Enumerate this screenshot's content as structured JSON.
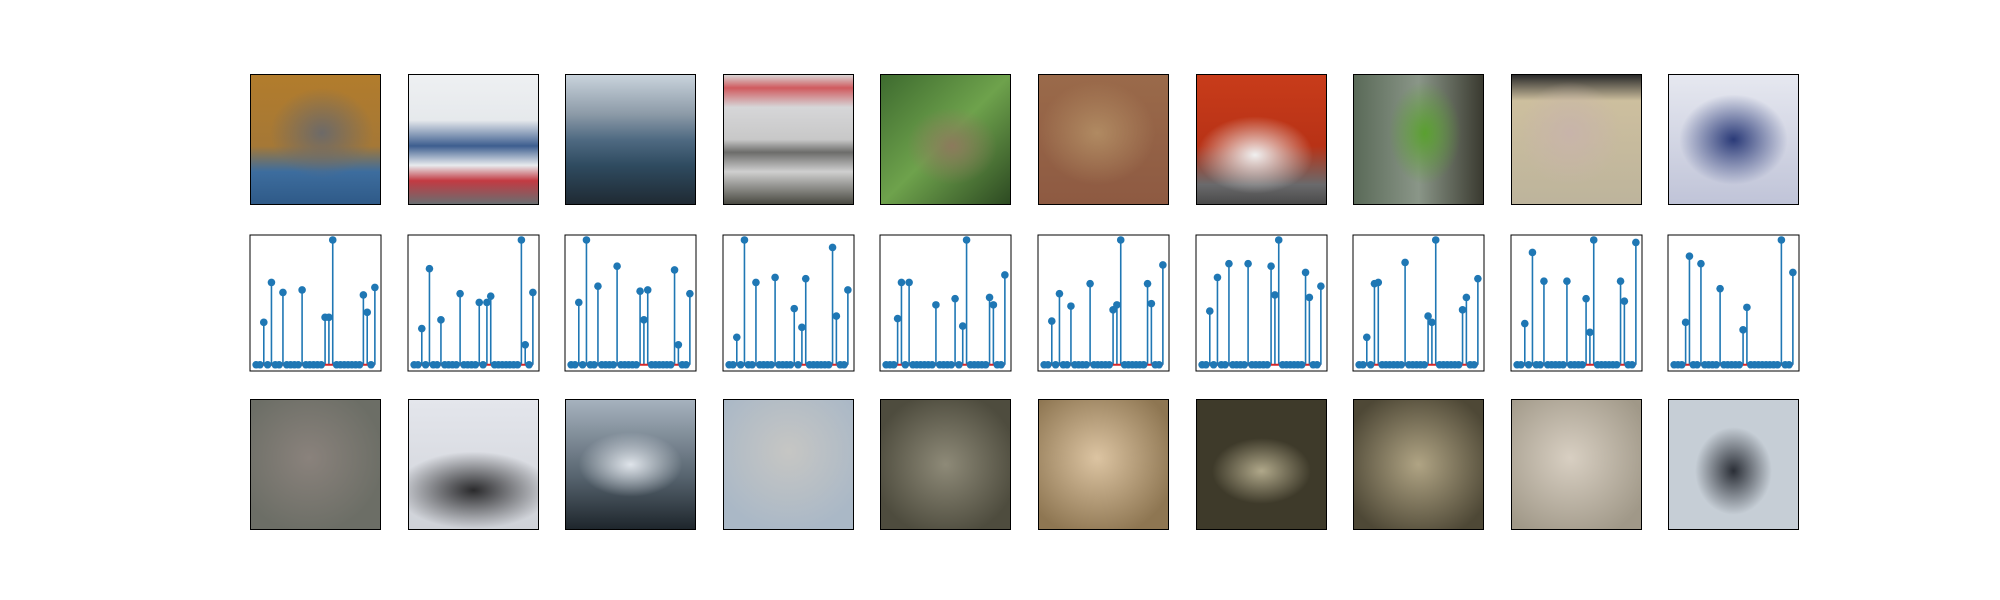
{
  "chart_data": [
    {
      "type": "stem",
      "color": "#1f77b4",
      "baseline_color": "#d62728",
      "xlim": [
        -1.6,
        32.6
      ],
      "ylim": [
        -0.05,
        1.04
      ],
      "values": [
        0,
        0,
        0.34,
        0,
        0.66,
        0,
        0,
        0.58,
        0,
        0,
        0,
        0,
        0.6,
        0,
        0,
        0,
        0,
        0,
        0.38,
        0.38,
        1.0,
        0,
        0,
        0,
        0,
        0,
        0,
        0,
        0.56,
        0.42,
        0,
        0.62
      ]
    },
    {
      "type": "stem",
      "color": "#1f77b4",
      "baseline_color": "#d62728",
      "xlim": [
        -1.6,
        32.6
      ],
      "ylim": [
        -0.05,
        1.04
      ],
      "values": [
        0,
        0,
        0.29,
        0,
        0.77,
        0,
        0,
        0.36,
        0,
        0,
        0,
        0,
        0.57,
        0,
        0,
        0,
        0,
        0.5,
        0,
        0.5,
        0.55,
        0,
        0,
        0,
        0,
        0,
        0,
        0,
        1.0,
        0.16,
        0,
        0.58
      ]
    },
    {
      "type": "stem",
      "color": "#1f77b4",
      "baseline_color": "#d62728",
      "xlim": [
        -1.6,
        32.6
      ],
      "ylim": [
        -0.05,
        1.04
      ],
      "values": [
        0,
        0,
        0.5,
        0,
        1.0,
        0,
        0,
        0.63,
        0,
        0,
        0,
        0,
        0.79,
        0,
        0,
        0,
        0,
        0,
        0.59,
        0.36,
        0.6,
        0,
        0,
        0,
        0,
        0,
        0,
        0.76,
        0.16,
        0,
        0,
        0.57
      ]
    },
    {
      "type": "stem",
      "color": "#1f77b4",
      "baseline_color": "#d62728",
      "xlim": [
        -1.6,
        32.6
      ],
      "ylim": [
        -0.05,
        1.04
      ],
      "values": [
        0,
        0,
        0.22,
        0,
        1.0,
        0,
        0,
        0.66,
        0,
        0,
        0,
        0,
        0.7,
        0,
        0,
        0,
        0,
        0.45,
        0,
        0.3,
        0.69,
        0,
        0,
        0,
        0,
        0,
        0,
        0.94,
        0.39,
        0,
        0,
        0.6
      ]
    },
    {
      "type": "stem",
      "color": "#1f77b4",
      "baseline_color": "#d62728",
      "xlim": [
        -1.6,
        32.6
      ],
      "ylim": [
        -0.05,
        1.04
      ],
      "values": [
        0,
        0,
        0,
        0.37,
        0.66,
        0,
        0.66,
        0,
        0,
        0,
        0,
        0,
        0,
        0.48,
        0,
        0,
        0,
        0,
        0.53,
        0,
        0.31,
        1.0,
        0,
        0,
        0,
        0,
        0,
        0.54,
        0.48,
        0,
        0,
        0.72
      ]
    },
    {
      "type": "stem",
      "color": "#1f77b4",
      "baseline_color": "#d62728",
      "xlim": [
        -1.6,
        32.6
      ],
      "ylim": [
        -0.05,
        1.04
      ],
      "values": [
        0,
        0,
        0.35,
        0,
        0.57,
        0,
        0,
        0.47,
        0,
        0,
        0,
        0,
        0.65,
        0,
        0,
        0,
        0,
        0,
        0.44,
        0.48,
        1.0,
        0,
        0,
        0,
        0,
        0,
        0,
        0.65,
        0.49,
        0,
        0,
        0.8
      ]
    },
    {
      "type": "stem",
      "color": "#1f77b4",
      "baseline_color": "#d62728",
      "xlim": [
        -1.6,
        32.6
      ],
      "ylim": [
        -0.05,
        1.04
      ],
      "values": [
        0,
        0,
        0.43,
        0,
        0.7,
        0,
        0,
        0.81,
        0,
        0,
        0,
        0,
        0.81,
        0,
        0,
        0,
        0,
        0,
        0.79,
        0.56,
        1.0,
        0,
        0,
        0,
        0,
        0,
        0,
        0.74,
        0.54,
        0,
        0,
        0.63
      ]
    },
    {
      "type": "stem",
      "color": "#1f77b4",
      "baseline_color": "#d62728",
      "xlim": [
        -1.6,
        32.6
      ],
      "ylim": [
        -0.05,
        1.04
      ],
      "values": [
        0,
        0,
        0.22,
        0,
        0.65,
        0.66,
        0,
        0,
        0,
        0,
        0,
        0,
        0.82,
        0,
        0,
        0,
        0,
        0,
        0.39,
        0.34,
        1.0,
        0,
        0,
        0,
        0,
        0,
        0,
        0.44,
        0.54,
        0,
        0,
        0.69
      ]
    },
    {
      "type": "stem",
      "color": "#1f77b4",
      "baseline_color": "#d62728",
      "xlim": [
        -1.6,
        32.6
      ],
      "ylim": [
        -0.05,
        1.04
      ],
      "values": [
        0,
        0,
        0.33,
        0,
        0.9,
        0,
        0,
        0.67,
        0,
        0,
        0,
        0,
        0,
        0.67,
        0,
        0,
        0,
        0,
        0.53,
        0.26,
        1.0,
        0,
        0,
        0,
        0,
        0,
        0,
        0.67,
        0.51,
        0,
        0,
        0.98
      ]
    },
    {
      "type": "stem",
      "color": "#1f77b4",
      "baseline_color": "#d62728",
      "xlim": [
        -1.6,
        32.6
      ],
      "ylim": [
        -0.05,
        1.04
      ],
      "values": [
        0,
        0,
        0,
        0.34,
        0.87,
        0,
        0,
        0.81,
        0,
        0,
        0,
        0,
        0.61,
        0,
        0,
        0,
        0,
        0,
        0.28,
        0.46,
        0,
        0,
        0,
        0,
        0,
        0,
        0,
        0,
        1.0,
        0,
        0,
        0.74
      ]
    }
  ]
}
